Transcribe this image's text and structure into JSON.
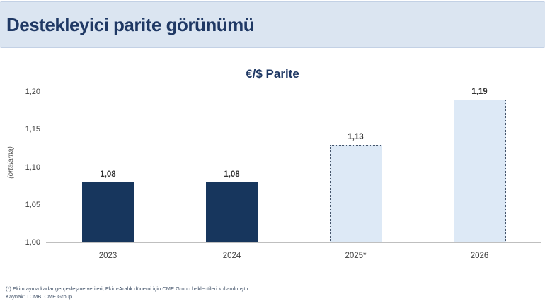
{
  "header": {
    "title": "Destekleyici parite görünümü"
  },
  "chart_data": {
    "type": "bar",
    "title": "€/$ Parite",
    "ylabel": "(ortalama)",
    "categories": [
      "2023",
      "2024",
      "2025*",
      "2026"
    ],
    "values": [
      1.08,
      1.08,
      1.13,
      1.19
    ],
    "value_labels": [
      "1,08",
      "1,08",
      "1,13",
      "1,19"
    ],
    "bar_styles": [
      "actual",
      "actual",
      "forecast",
      "forecast"
    ],
    "ylim": [
      1.0,
      1.2
    ],
    "yticks": [
      {
        "value": 1.0,
        "label": "1,00"
      },
      {
        "value": 1.05,
        "label": "1,05"
      },
      {
        "value": 1.1,
        "label": "1,10"
      },
      {
        "value": 1.15,
        "label": "1,15"
      },
      {
        "value": 1.2,
        "label": "1,20"
      }
    ],
    "grid": false,
    "legend": "none",
    "colors": {
      "actual_bar": "#17365d",
      "forecast_fill": "#dde9f6",
      "forecast_border": "#44546a",
      "title_text": "#1f3864",
      "header_band": "#dbe5f1"
    }
  },
  "footnote": {
    "line1": "(*) Ekim ayına kadar gerçekleşme verileri, Ekim-Aralık dönemi için CME Group beklentileri kullanılmıştır.",
    "line2": "Kaynak: TCMB,  CME Group"
  }
}
